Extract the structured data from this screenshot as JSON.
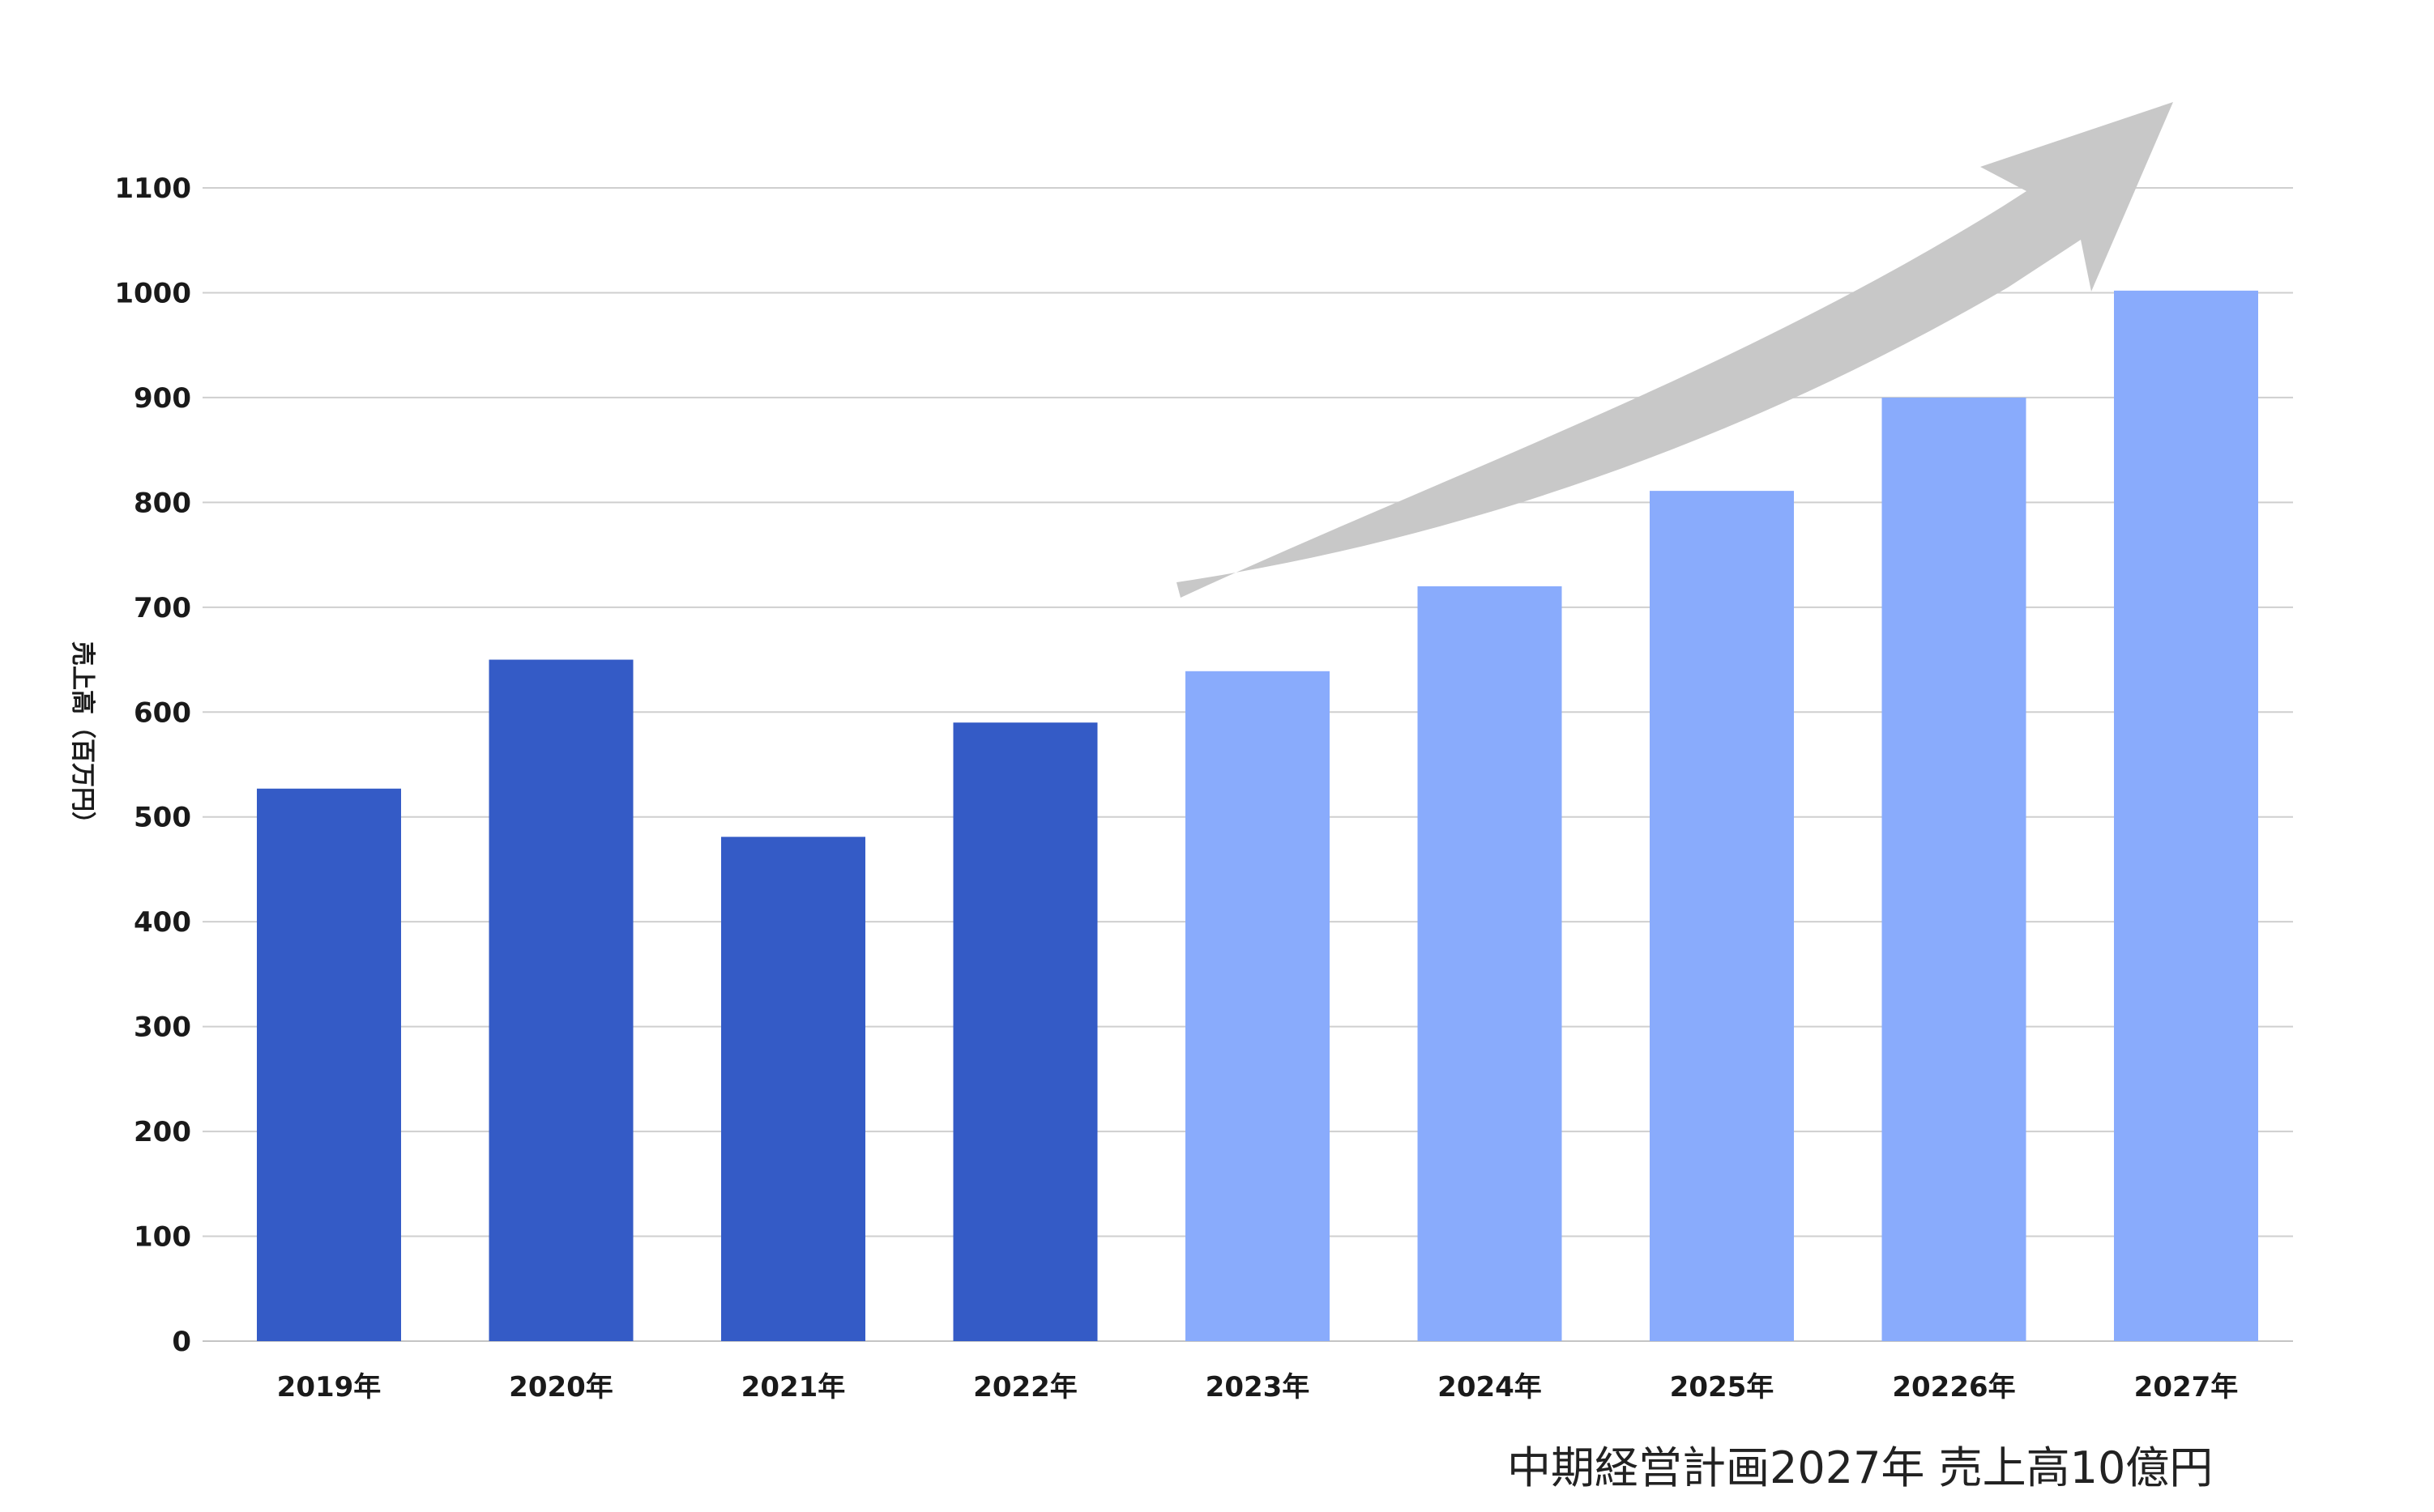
{
  "colors": {
    "actual_bar": "#345BC6",
    "plan_bar": "#89ABFC",
    "trend_arrow": "#C8C8C8",
    "gridline": "#CFCFCF",
    "text": "#1A1A1A"
  },
  "chart_data": {
    "type": "bar",
    "title": "",
    "xlabel": "",
    "ylabel": "売上高（百万円）",
    "ylim": [
      0,
      1100
    ],
    "yticks": [
      0,
      100,
      200,
      300,
      400,
      500,
      600,
      700,
      800,
      900,
      1000,
      1100
    ],
    "grid": true,
    "categories": [
      "2019年",
      "2020年",
      "2021年",
      "2022年",
      "2023年",
      "2024年",
      "2025年",
      "20226年",
      "2027年"
    ],
    "values": [
      527,
      650,
      481,
      590,
      639,
      720,
      811,
      900,
      1002
    ],
    "bar_groups": [
      "actual",
      "actual",
      "actual",
      "actual",
      "plan",
      "plan",
      "plan",
      "plan",
      "plan"
    ],
    "annotations": {
      "trend_arrow": "upward-curve",
      "caption": "中期経営計画2027年 売上高10億円"
    }
  }
}
